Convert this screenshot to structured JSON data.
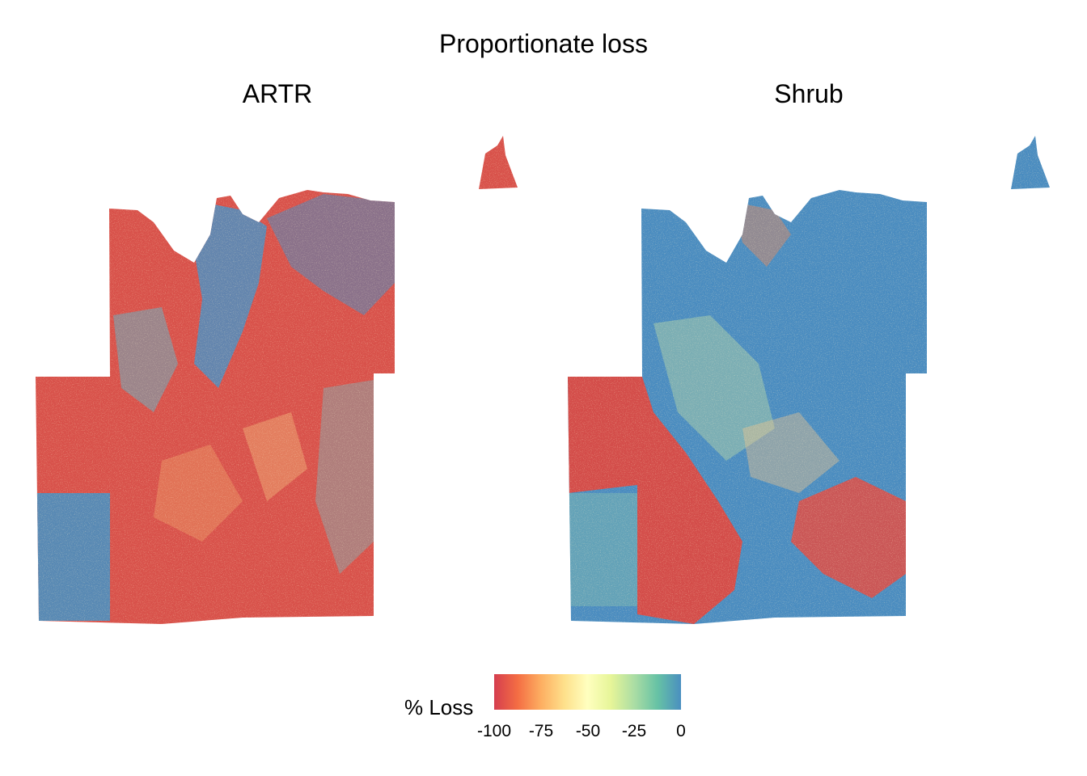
{
  "title": "Proportionate loss",
  "panels": [
    {
      "name": "ARTR"
    },
    {
      "name": "Shrub"
    }
  ],
  "legend": {
    "title": "% Loss",
    "min": -100,
    "max": 0,
    "ticks": [
      -100,
      -75,
      -50,
      -25,
      0
    ],
    "tick_labels": [
      "-100",
      "-75",
      "-50",
      "-25",
      "0"
    ],
    "colors": [
      "#d53e4f",
      "#f46d43",
      "#fdae61",
      "#fee08b",
      "#ffffbf",
      "#e6f598",
      "#abdda4",
      "#66c2a5",
      "#4a8fc0"
    ]
  }
}
